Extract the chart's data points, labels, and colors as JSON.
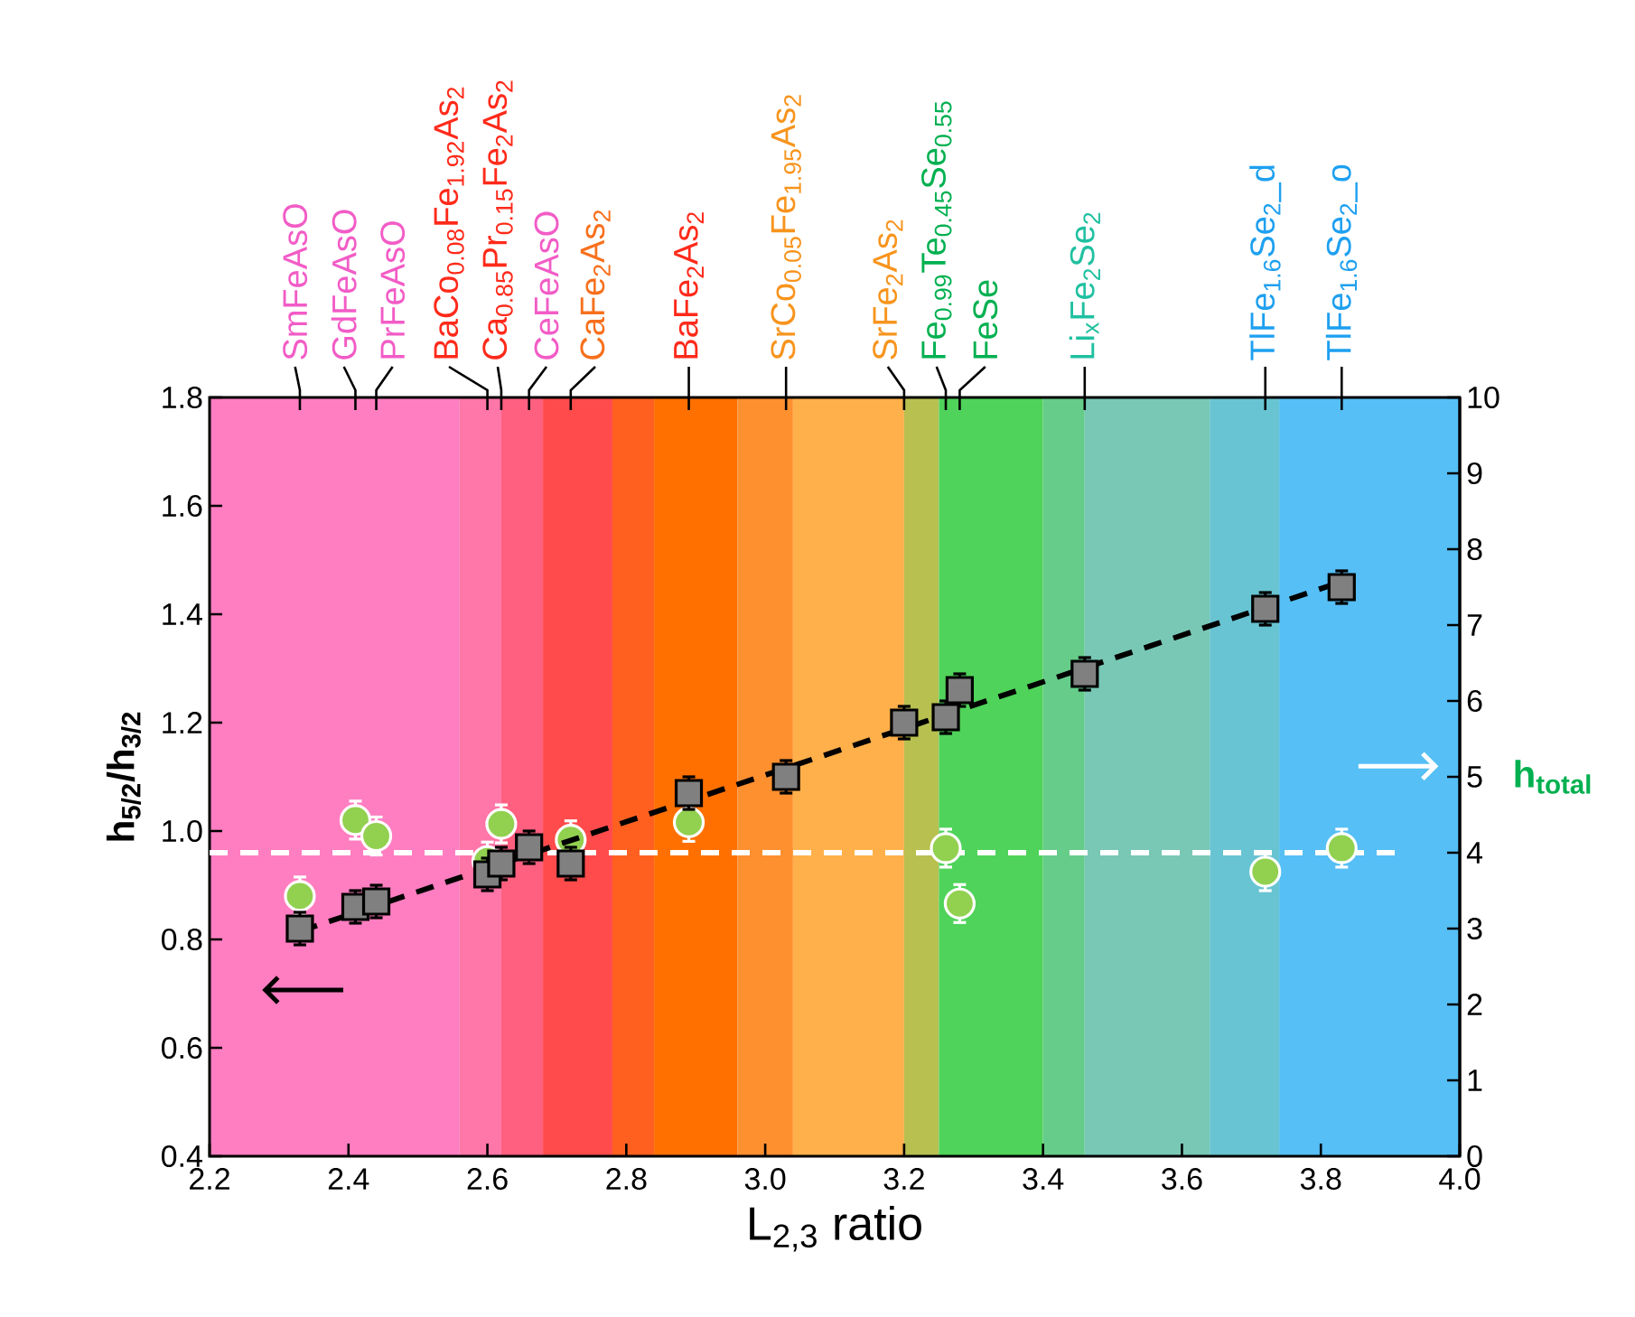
{
  "chart_data": {
    "type": "scatter",
    "xlabel": "L$_{2,3}$ ratio",
    "ylabel": "h$_{5/2}$/h$_{3/2}$",
    "y2label": "h$_{total}$",
    "xlim": [
      2.2,
      4.0
    ],
    "xticks": [
      2.2,
      2.4,
      2.6,
      2.8,
      {
        "value": 3.0,
        "label": "3.0"
      },
      3.2,
      3.4,
      3.6,
      3.8,
      {
        "value": 4.0,
        "label": "4.0"
      }
    ],
    "ylim": [
      0.4,
      1.8
    ],
    "yticks": [
      0.4,
      0.6,
      0.8,
      {
        "value": 1.0,
        "label": "1.0"
      },
      1.2,
      1.4,
      1.6,
      1.8
    ],
    "y2lim": [
      0,
      10
    ],
    "y2ticks": [
      0,
      1,
      2,
      3,
      4,
      5,
      6,
      7,
      8,
      9,
      10
    ],
    "annotations": [
      {
        "x": 2.33,
        "text": "SmFeAsO"
      },
      {
        "x": 2.41,
        "text": "GdFeAsO"
      },
      {
        "x": 2.44,
        "text": "PrFeAsO"
      },
      {
        "x": 2.6,
        "text": "BaCo$_{0.08}$Fe$_{1.92}$As$_{2}$"
      },
      {
        "x": 2.62,
        "text": "Ca$_{0.85}$Pr$_{0.15}$Fe$_{2}$As$_{2}$"
      },
      {
        "x": 2.66,
        "text": "CeFeAsO"
      },
      {
        "x": 2.72,
        "text": "CaFe$_{2}$As$_{2}$"
      },
      {
        "x": 2.89,
        "text": "BaFe$_{2}$As$_{2}$"
      },
      {
        "x": 3.03,
        "text": "SrCo$_{0.05}$Fe$_{1.95}$As$_{2}$"
      },
      {
        "x": 3.2,
        "text": "SrFe$_{2}$As$_{2}$"
      },
      {
        "x": 3.26,
        "text": "Fe$_{0.99}$Te$_{0.45}$Se$_{0.55}$"
      },
      {
        "x": 3.28,
        "text": "FeSe"
      },
      {
        "x": 3.46,
        "text": "Li$_{x}$Fe$_{2}$Se$_{2}$"
      },
      {
        "x": 3.72,
        "text": "TlFe$_{1.6}$Se$_{2}$_d"
      },
      {
        "x": 3.83,
        "text": "TlFe$_{1.6}$Se$_{2}$_o"
      }
    ],
    "bands": [
      {
        "axis": "x",
        "from": 2.2,
        "to": 2.56,
        "color": "#ff7ec1"
      },
      {
        "axis": "x",
        "from": 2.56,
        "to": 2.62,
        "color": "#ff76a8"
      },
      {
        "axis": "x",
        "from": 2.62,
        "to": 2.68,
        "color": "#ff6080"
      },
      {
        "axis": "x",
        "from": 2.68,
        "to": 2.78,
        "color": "#ff4b4b"
      },
      {
        "axis": "x",
        "from": 2.78,
        "to": 2.84,
        "color": "#ff6020"
      },
      {
        "axis": "x",
        "from": 2.84,
        "to": 2.96,
        "color": "#ff7000"
      },
      {
        "axis": "x",
        "from": 2.96,
        "to": 3.04,
        "color": "#ff9030"
      },
      {
        "axis": "x",
        "from": 3.04,
        "to": 3.2,
        "color": "#ffb04a"
      },
      {
        "axis": "x",
        "from": 3.2,
        "to": 3.25,
        "color": "#b8c050"
      },
      {
        "axis": "x",
        "from": 3.25,
        "to": 3.4,
        "color": "#4fd35a"
      },
      {
        "axis": "x",
        "from": 3.4,
        "to": 3.46,
        "color": "#66cc8a"
      },
      {
        "axis": "x",
        "from": 3.46,
        "to": 3.64,
        "color": "#78c8b5"
      },
      {
        "axis": "x",
        "from": 3.64,
        "to": 3.74,
        "color": "#68c4d2"
      },
      {
        "axis": "x",
        "from": 3.74,
        "to": 4.0,
        "color": "#56bff5"
      }
    ],
    "series": [
      {
        "marker": "square",
        "color": "#808080",
        "x": [
          2.33,
          2.41,
          2.44,
          2.6,
          2.62,
          2.66,
          2.72,
          2.89,
          3.03,
          3.2,
          3.26,
          3.28,
          3.46,
          3.72,
          3.83
        ],
        "values": [
          0.82,
          0.86,
          0.87,
          0.92,
          0.94,
          0.97,
          0.94,
          1.07,
          1.1,
          1.2,
          1.21,
          1.26,
          1.29,
          1.41,
          1.45
        ],
        "errors": [
          0.03,
          0.03,
          0.03,
          0.03,
          0.03,
          0.03,
          0.03,
          0.03,
          0.03,
          0.03,
          0.03,
          0.03,
          0.03,
          0.03,
          0.03
        ]
      },
      {
        "axis": "y2",
        "marker": "circle",
        "color": "#92d050",
        "x": [
          2.33,
          2.41,
          2.44,
          2.6,
          2.62,
          2.72,
          2.89,
          3.26,
          3.28,
          3.72,
          3.83
        ],
        "values": [
          3.43,
          4.43,
          4.22,
          3.89,
          4.38,
          4.17,
          4.4,
          4.06,
          3.33,
          3.75,
          4.06
        ],
        "errors": [
          0.25,
          0.25,
          0.25,
          0.25,
          0.25,
          0.25,
          0.25,
          0.25,
          0.25,
          0.25,
          0.25
        ]
      },
      {
        "type": "line",
        "marker": "none",
        "line_style": "dashed",
        "color": "#000000",
        "x": [
          2.33,
          3.83
        ],
        "values": [
          0.815,
          1.46
        ]
      },
      {
        "type": "line",
        "axis": "y2",
        "marker": "none",
        "line_style": "dashed",
        "color": "#ffffff",
        "x": [
          2.2,
          3.91
        ],
        "values": [
          4.0,
          4.0
        ]
      }
    ]
  }
}
